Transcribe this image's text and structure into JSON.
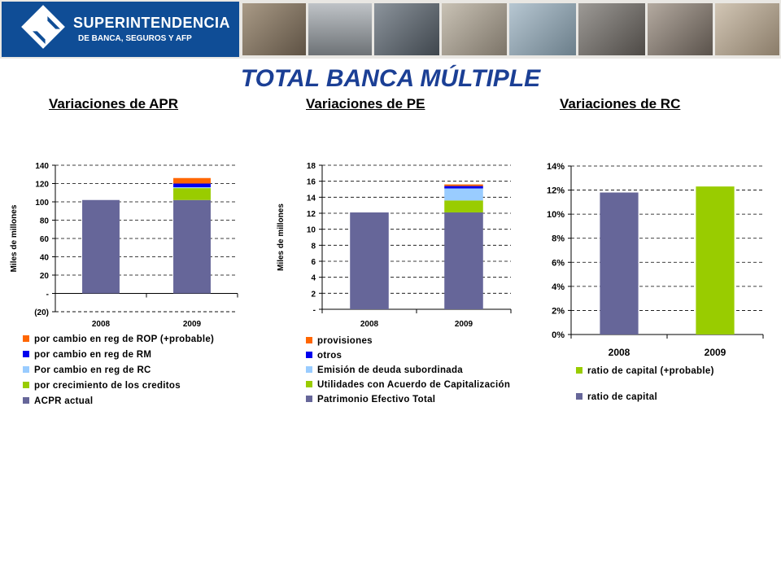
{
  "header": {
    "logo_name": "SUPERINTENDENCIA",
    "logo_sub": "DE BANCA, SEGUROS Y AFP"
  },
  "title": "TOTAL BANCA MÚLTIPLE",
  "colors": {
    "base": "#666699",
    "green": "#99cc00",
    "light_blue": "#99ccff",
    "blue": "#0000ee",
    "orange": "#ff6600",
    "title_blue": "#1b3f95",
    "logo_blue": "#0f4d96"
  },
  "chart_data": [
    {
      "type": "bar",
      "title": "Variaciones de APR",
      "ylabel": "Miles de millones",
      "categories": [
        "2008",
        "2009"
      ],
      "ylim": [
        -20,
        140
      ],
      "yticks": [
        "(20)",
        "-",
        "20",
        "40",
        "60",
        "80",
        "100",
        "120",
        "140"
      ],
      "stacked": true,
      "series": [
        {
          "name": "ACPR actual",
          "color": "#666699",
          "values": [
            102,
            102
          ]
        },
        {
          "name": "por crecimiento de los creditos",
          "color": "#99cc00",
          "values": [
            0,
            13
          ]
        },
        {
          "name": "Por cambio en reg de RC",
          "color": "#99ccff",
          "values": [
            0,
            1
          ]
        },
        {
          "name": "por cambio en reg de RM",
          "color": "#0000ee",
          "values": [
            0,
            4
          ]
        },
        {
          "name": "por cambio en reg de ROP (+probable)",
          "color": "#ff6600",
          "values": [
            0,
            6
          ]
        }
      ],
      "legend": [
        {
          "label": "por cambio en reg de ROP (+probable)",
          "color": "#ff6600"
        },
        {
          "label": "por cambio en reg de RM",
          "color": "#0000ee"
        },
        {
          "label": "Por cambio en reg de RC",
          "color": "#99ccff"
        },
        {
          "label": "por crecimiento de los creditos",
          "color": "#99cc00"
        },
        {
          "label": "ACPR actual",
          "color": "#666699"
        }
      ]
    },
    {
      "type": "bar",
      "title": "Variaciones de PE",
      "ylabel": "Miles de millones",
      "categories": [
        "2008",
        "2009"
      ],
      "ylim": [
        0,
        18
      ],
      "yticks": [
        "-",
        "2",
        "4",
        "6",
        "8",
        "10",
        "12",
        "14",
        "16",
        "18"
      ],
      "stacked": true,
      "series": [
        {
          "name": "Patrimonio Efectivo Total",
          "color": "#666699",
          "values": [
            12.1,
            12.1
          ]
        },
        {
          "name": "Utilidades con Acuerdo de Capitalización",
          "color": "#99cc00",
          "values": [
            0,
            1.5
          ]
        },
        {
          "name": "Emisión de deuda subordinada",
          "color": "#99ccff",
          "values": [
            0,
            1.5
          ]
        },
        {
          "name": "otros",
          "color": "#0000ee",
          "values": [
            0,
            0.3
          ]
        },
        {
          "name": "provisiones",
          "color": "#ff6600",
          "values": [
            0,
            0.2
          ]
        }
      ],
      "legend": [
        {
          "label": "provisiones",
          "color": "#ff6600"
        },
        {
          "label": "otros",
          "color": "#0000ee"
        },
        {
          "label": "Emisión de deuda subordinada",
          "color": "#99ccff"
        },
        {
          "label": "Utilidades con Acuerdo de Capitalización",
          "color": "#99cc00"
        },
        {
          "label": "Patrimonio Efectivo Total",
          "color": "#666699"
        }
      ]
    },
    {
      "type": "bar",
      "title": "Variaciones de RC",
      "categories": [
        "2008",
        "2009"
      ],
      "ylim": [
        0,
        14
      ],
      "yticks": [
        "0%",
        "2%",
        "4%",
        "6%",
        "8%",
        "10%",
        "12%",
        "14%"
      ],
      "series": [
        {
          "name": "ratio de capital",
          "color": "#666699",
          "values": [
            11.8,
            null
          ]
        },
        {
          "name": "ratio de capital (+probable)",
          "color": "#99cc00",
          "values": [
            null,
            12.3
          ]
        }
      ],
      "legend": [
        {
          "label": "ratio de capital (+probable)",
          "color": "#99cc00"
        },
        {
          "label": "ratio de capital",
          "color": "#666699"
        }
      ]
    }
  ]
}
